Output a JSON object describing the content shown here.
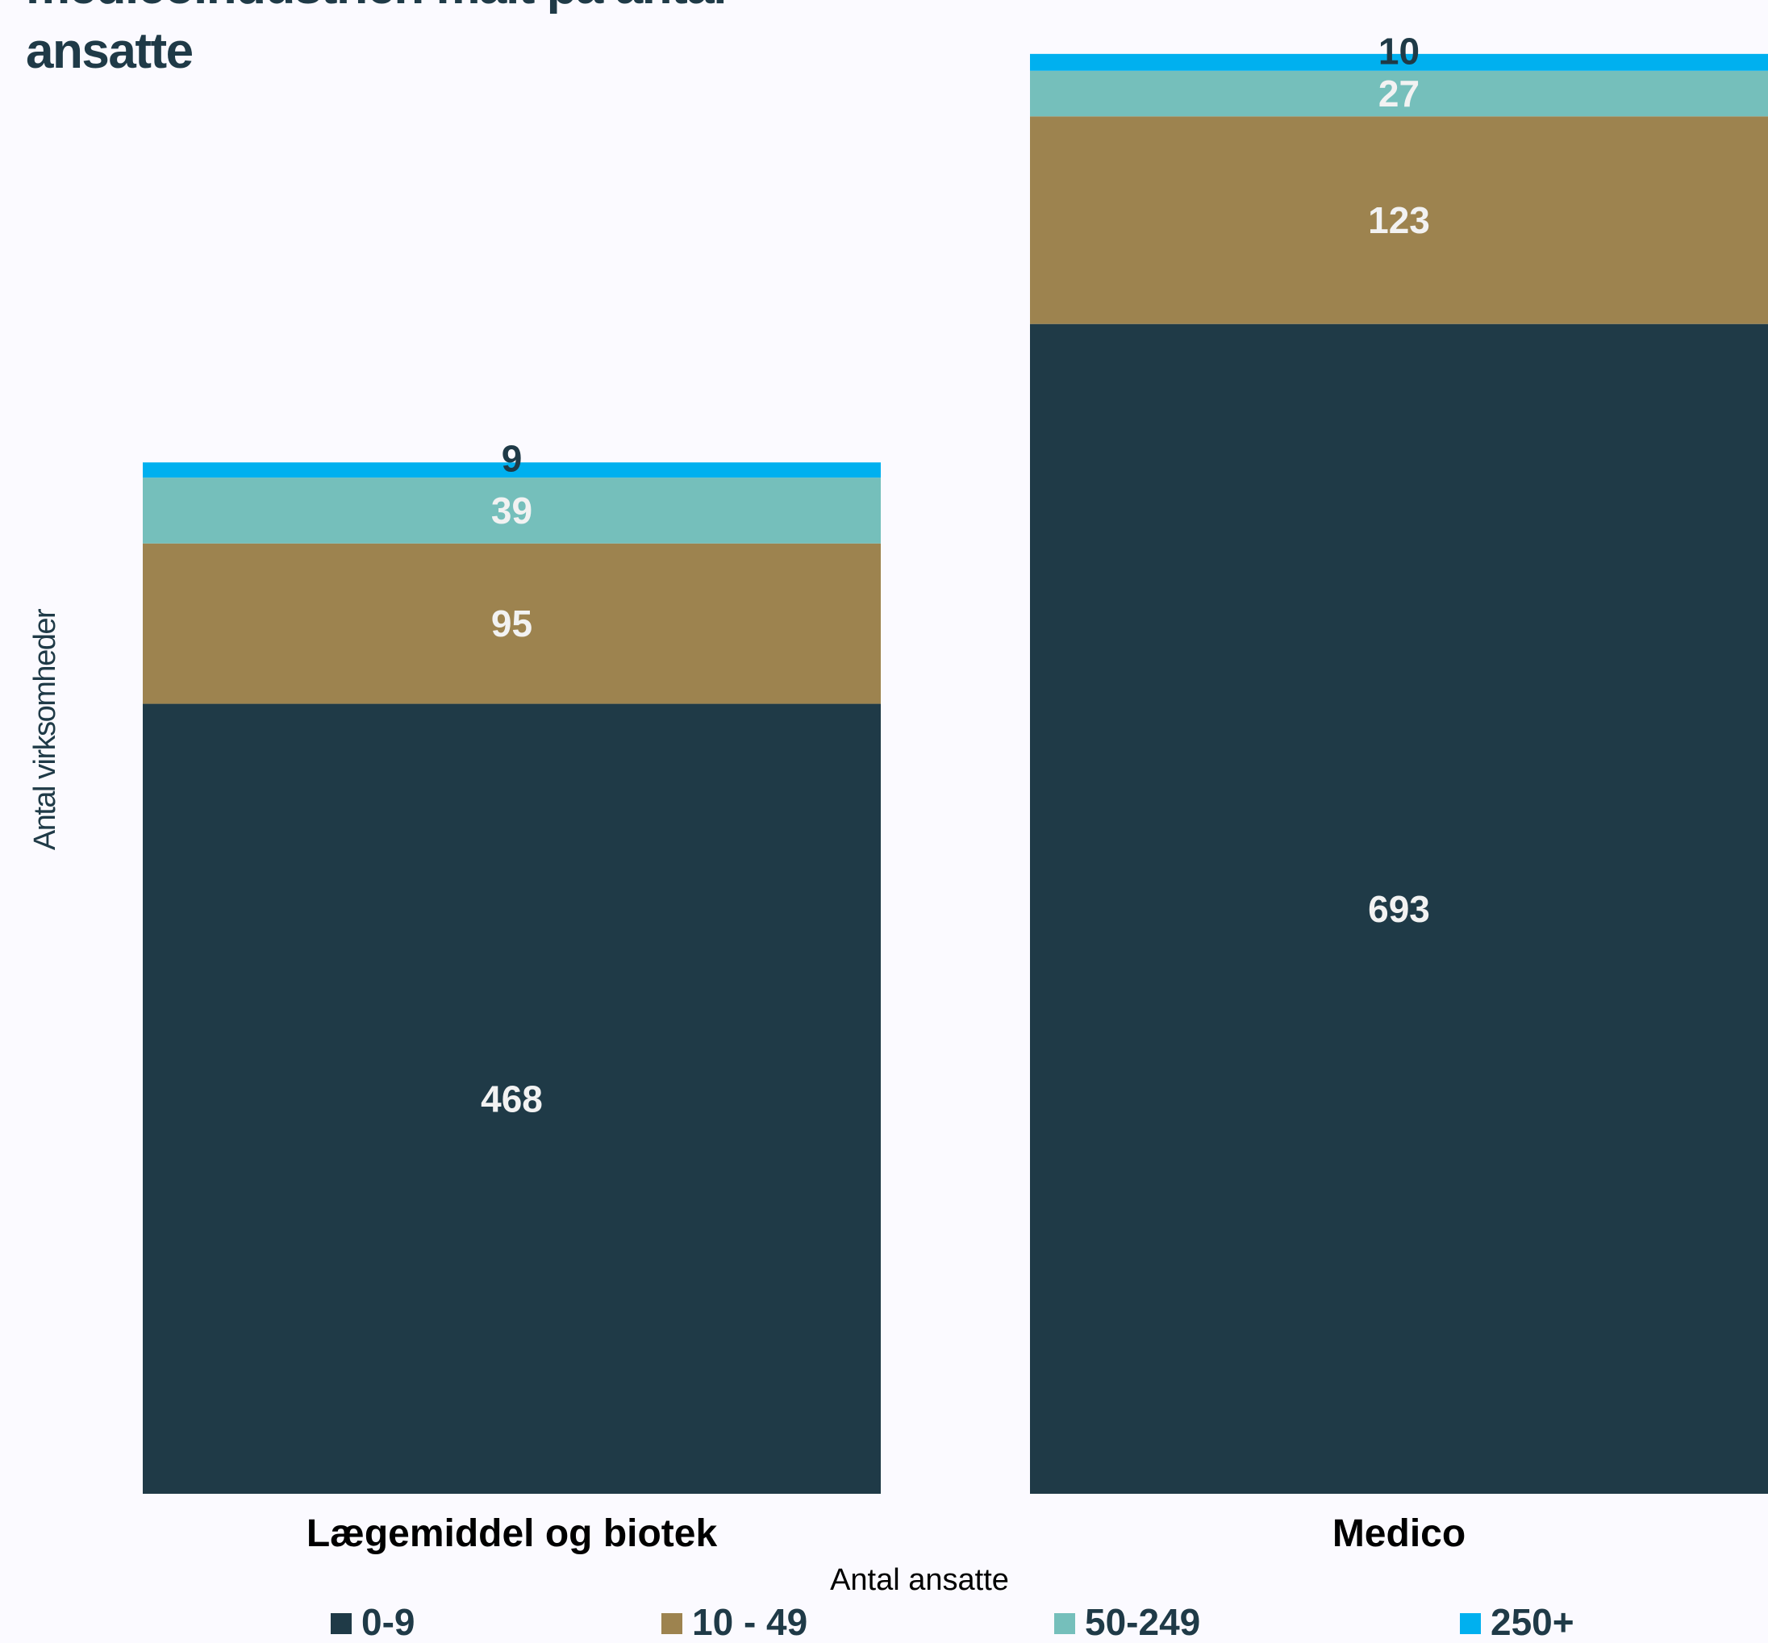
{
  "chart_data": {
    "type": "bar",
    "stacked": true,
    "title_lines": [
      "medicoindustrien målt på antal",
      "ansatte"
    ],
    "ylabel": "Antal virksomheder",
    "legend_title": "Antal ansatte",
    "legend_position": "bottom",
    "grid": false,
    "categories": [
      "Lægemiddel og biotek",
      "Medico"
    ],
    "series": [
      {
        "name": "0-9",
        "values": [
          468,
          693
        ],
        "color": "#1f3a47",
        "label_color": "#f2f2f2"
      },
      {
        "name": "10 - 49",
        "values": [
          95,
          123
        ],
        "color": "#9d834f",
        "label_color": "#f2f2f2"
      },
      {
        "name": "50-249",
        "values": [
          39,
          27
        ],
        "color": "#75bfbb",
        "label_color": "#f2f2f2"
      },
      {
        "name": "250+",
        "values": [
          9,
          10
        ],
        "color": "#00b0ef",
        "label_color": "#1f3a47"
      }
    ],
    "ylim": [
      0,
      862
    ]
  }
}
